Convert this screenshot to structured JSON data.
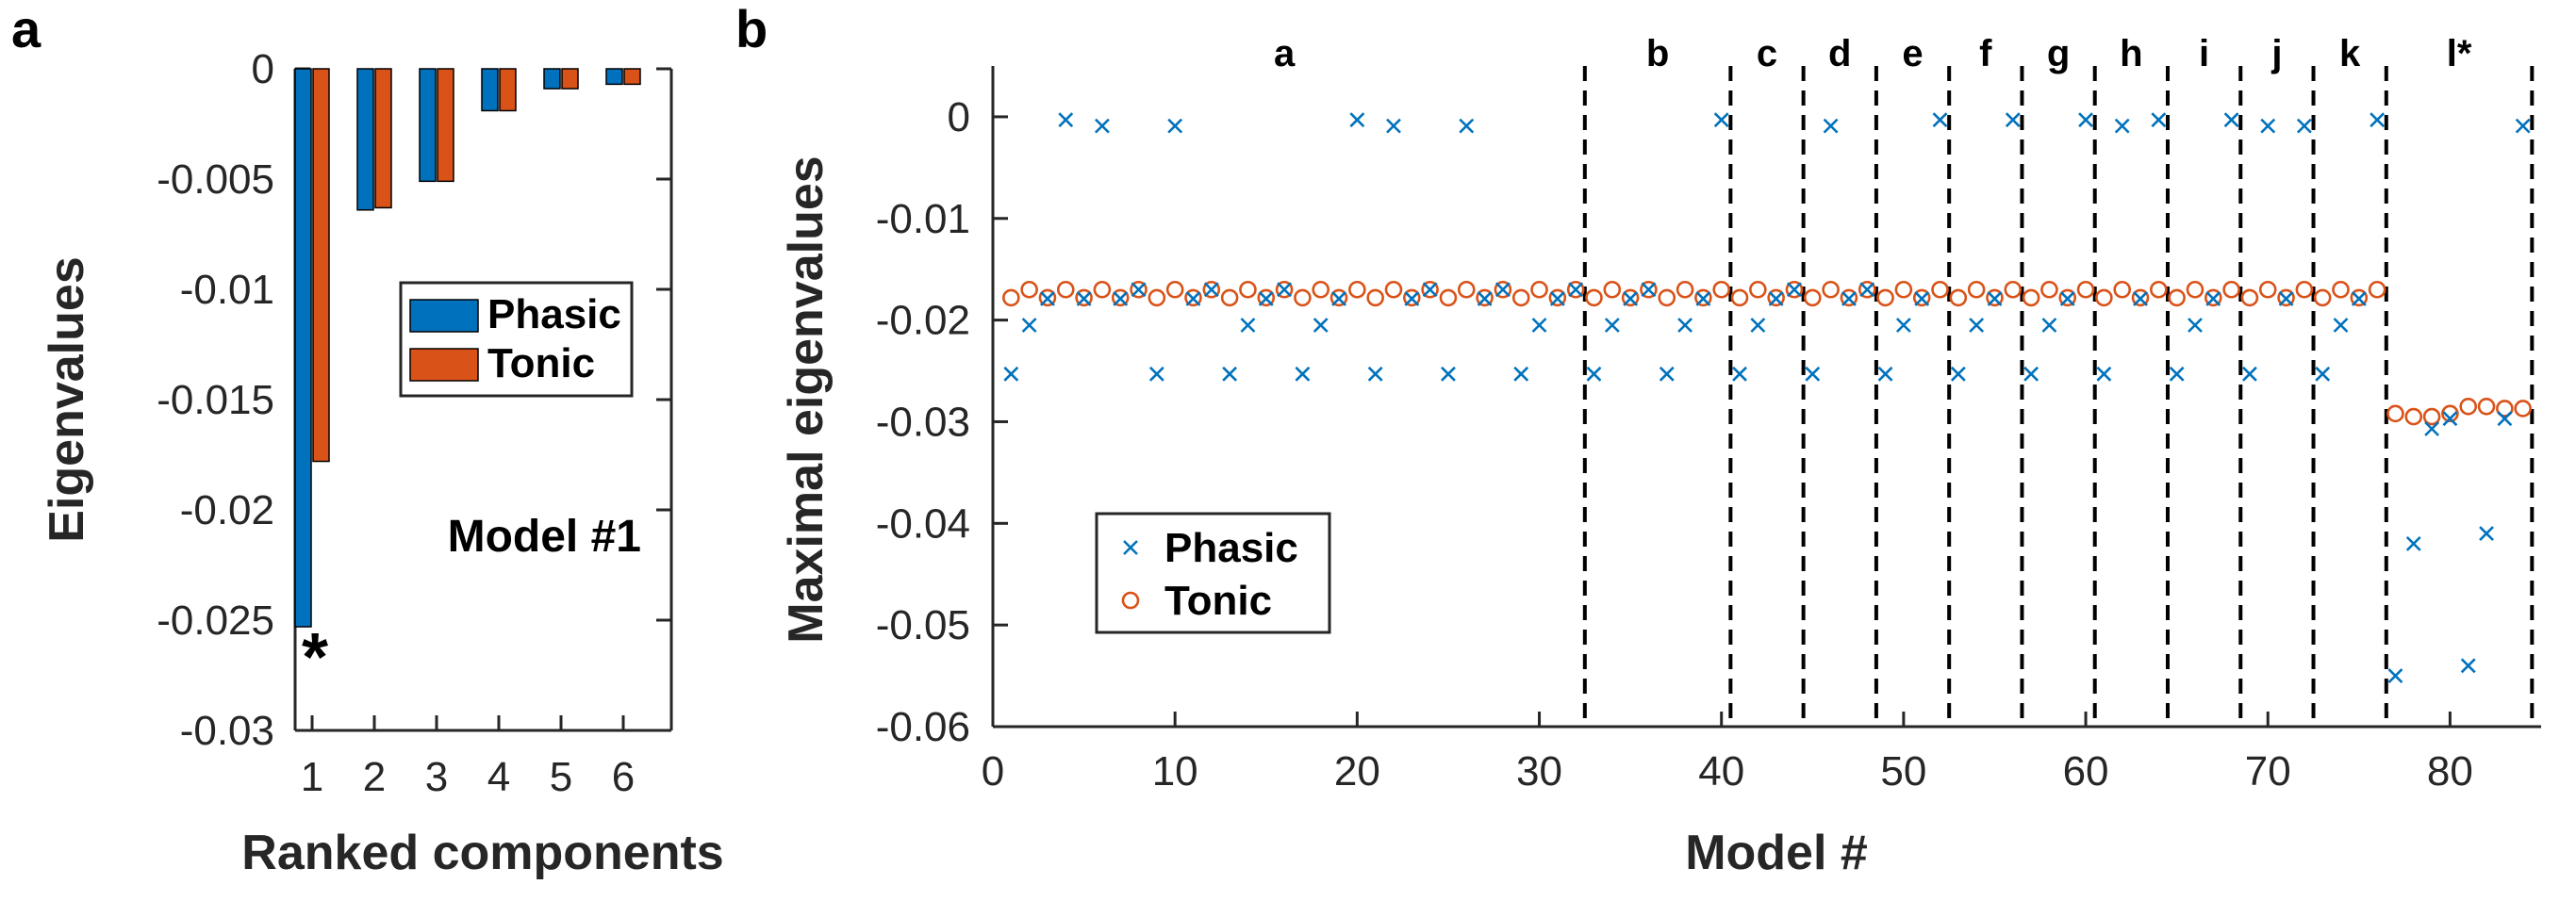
{
  "figure": {
    "panel_a_letter": "a",
    "panel_b_letter": "b"
  },
  "colors": {
    "phasic": "#0072BD",
    "tonic": "#D95319",
    "axis": "#262626"
  },
  "chart_data": [
    {
      "type": "bar",
      "panel": "a",
      "title": "",
      "xlabel": "Ranked components",
      "ylabel": "Eigenvalues",
      "categories": [
        "1",
        "2",
        "3",
        "4",
        "5",
        "6"
      ],
      "series": [
        {
          "name": "Phasic",
          "values": [
            -0.0253,
            -0.0064,
            -0.0051,
            -0.0019,
            -0.0009,
            -0.0007
          ]
        },
        {
          "name": "Tonic",
          "values": [
            -0.0178,
            -0.0063,
            -0.0051,
            -0.0019,
            -0.0009,
            -0.0007
          ]
        }
      ],
      "ylim": [
        -0.03,
        0
      ],
      "yticks": [
        0,
        -0.005,
        -0.01,
        -0.015,
        -0.02,
        -0.025,
        -0.03
      ],
      "ytick_labels": [
        "0",
        "-0.005",
        "-0.01",
        "-0.015",
        "-0.02",
        "-0.025",
        "-0.03"
      ],
      "annotation": "Model #1",
      "marker_annotation": "*",
      "legend_position": "middle-right",
      "grid": false
    },
    {
      "type": "scatter",
      "panel": "b",
      "title": "",
      "xlabel": "Model #",
      "ylabel": "Maximal eigenvalues",
      "xlim": [
        0,
        85
      ],
      "ylim": [
        -0.06,
        0.005
      ],
      "xticks": [
        0,
        10,
        20,
        30,
        40,
        50,
        60,
        70,
        80
      ],
      "xtick_labels": [
        "0",
        "10",
        "20",
        "30",
        "40",
        "50",
        "60",
        "70",
        "80"
      ],
      "yticks": [
        0,
        -0.01,
        -0.02,
        -0.03,
        -0.04,
        -0.05,
        -0.06
      ],
      "ytick_labels": [
        "0",
        "-0.01",
        "-0.02",
        "-0.03",
        "-0.04",
        "-0.05",
        "-0.06"
      ],
      "x": [
        1,
        2,
        3,
        4,
        5,
        6,
        7,
        8,
        9,
        10,
        11,
        12,
        13,
        14,
        15,
        16,
        17,
        18,
        19,
        20,
        21,
        22,
        23,
        24,
        25,
        26,
        27,
        28,
        29,
        30,
        31,
        32,
        33,
        34,
        35,
        36,
        37,
        38,
        39,
        40,
        41,
        42,
        43,
        44,
        45,
        46,
        47,
        48,
        49,
        50,
        51,
        52,
        53,
        54,
        55,
        56,
        57,
        58,
        59,
        60,
        61,
        62,
        63,
        64,
        65,
        66,
        67,
        68,
        69,
        70,
        71,
        72,
        73,
        74,
        75,
        76,
        77,
        78,
        79,
        80,
        81,
        82,
        83,
        84
      ],
      "series": [
        {
          "name": "Phasic",
          "marker": "x",
          "values": [
            -0.0253,
            -0.0205,
            -0.0179,
            -0.0003,
            -0.0179,
            -0.0009,
            -0.0179,
            -0.017,
            -0.0253,
            -0.0009,
            -0.0179,
            -0.017,
            -0.0253,
            -0.0205,
            -0.0179,
            -0.017,
            -0.0253,
            -0.0205,
            -0.0179,
            -0.0003,
            -0.0253,
            -0.0009,
            -0.0179,
            -0.017,
            -0.0253,
            -0.0009,
            -0.0179,
            -0.017,
            -0.0253,
            -0.0205,
            -0.0179,
            -0.017,
            -0.0253,
            -0.0205,
            -0.0179,
            -0.017,
            -0.0253,
            -0.0205,
            -0.0179,
            -0.0003,
            -0.0253,
            -0.0205,
            -0.0179,
            -0.017,
            -0.0253,
            -0.0009,
            -0.0179,
            -0.017,
            -0.0253,
            -0.0205,
            -0.0179,
            -0.0003,
            -0.0253,
            -0.0205,
            -0.0179,
            -0.0003,
            -0.0253,
            -0.0205,
            -0.0179,
            -0.0003,
            -0.0253,
            -0.0009,
            -0.0179,
            -0.0003,
            -0.0253,
            -0.0205,
            -0.0179,
            -0.0003,
            -0.0253,
            -0.0009,
            -0.0179,
            -0.0009,
            -0.0253,
            -0.0205,
            -0.0179,
            -0.0003,
            -0.055,
            -0.042,
            -0.0307,
            -0.0297,
            -0.054,
            -0.041,
            -0.0297,
            -0.0009
          ]
        },
        {
          "name": "Tonic",
          "marker": "o",
          "values": [
            -0.0178,
            -0.017,
            -0.0178,
            -0.017,
            -0.0178,
            -0.017,
            -0.0178,
            -0.017,
            -0.0178,
            -0.017,
            -0.0178,
            -0.017,
            -0.0178,
            -0.017,
            -0.0178,
            -0.017,
            -0.0178,
            -0.017,
            -0.0178,
            -0.017,
            -0.0178,
            -0.017,
            -0.0178,
            -0.017,
            -0.0178,
            -0.017,
            -0.0178,
            -0.017,
            -0.0178,
            -0.017,
            -0.0178,
            -0.017,
            -0.0178,
            -0.017,
            -0.0178,
            -0.017,
            -0.0178,
            -0.017,
            -0.0178,
            -0.017,
            -0.0178,
            -0.017,
            -0.0178,
            -0.017,
            -0.0178,
            -0.017,
            -0.0178,
            -0.017,
            -0.0178,
            -0.017,
            -0.0178,
            -0.017,
            -0.0178,
            -0.017,
            -0.0178,
            -0.017,
            -0.0178,
            -0.017,
            -0.0178,
            -0.017,
            -0.0178,
            -0.017,
            -0.0178,
            -0.017,
            -0.0178,
            -0.017,
            -0.0178,
            -0.017,
            -0.0178,
            -0.017,
            -0.0178,
            -0.017,
            -0.0178,
            -0.017,
            -0.0178,
            -0.017,
            -0.0292,
            -0.0295,
            -0.0295,
            -0.0292,
            -0.0285,
            -0.0285,
            -0.0287,
            -0.0287
          ]
        }
      ],
      "group_dividers": [
        32.5,
        40.5,
        44.5,
        48.5,
        52.5,
        56.5,
        60.5,
        64.5,
        68.5,
        72.5,
        76.5,
        84.5
      ],
      "groups": [
        {
          "label": "a",
          "center": 16
        },
        {
          "label": "b",
          "center": 36.5
        },
        {
          "label": "c",
          "center": 42.5
        },
        {
          "label": "d",
          "center": 46.5
        },
        {
          "label": "e",
          "center": 50.5
        },
        {
          "label": "f",
          "center": 54.5
        },
        {
          "label": "g",
          "center": 58.5
        },
        {
          "label": "h",
          "center": 62.5
        },
        {
          "label": "i",
          "center": 66.5
        },
        {
          "label": "j",
          "center": 70.5
        },
        {
          "label": "k",
          "center": 74.5
        },
        {
          "label": "l*",
          "center": 80.5
        }
      ],
      "legend_position": "bottom-left",
      "grid": false
    }
  ]
}
